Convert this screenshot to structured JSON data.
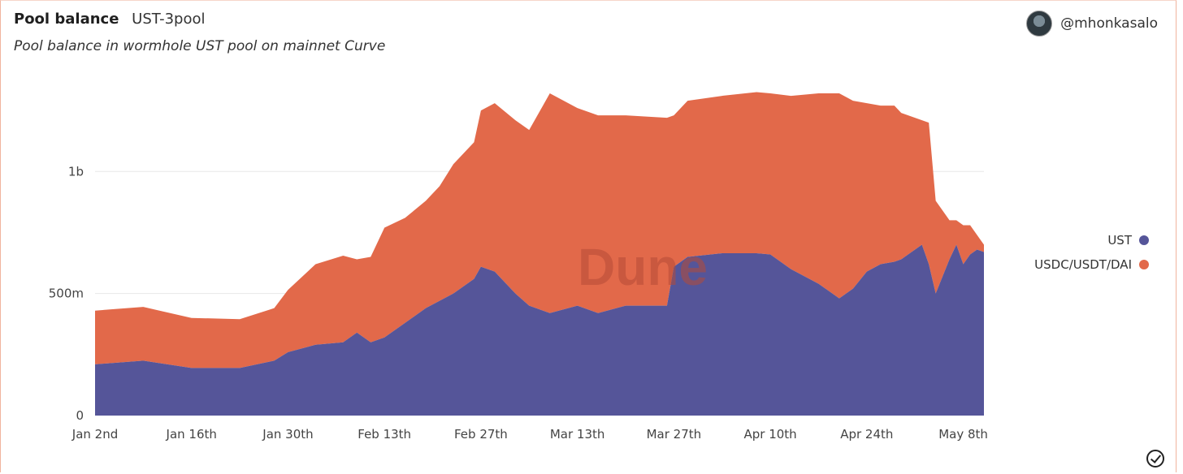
{
  "header": {
    "title": "Pool balance",
    "tag": "UST-3pool",
    "subtitle": "Pool balance in wormhole UST pool on mainnet Curve",
    "author": "@mhonkasalo"
  },
  "watermark": "Dune",
  "chart_data": {
    "type": "area",
    "stacked": true,
    "title": "Pool balance",
    "subtitle": "Pool balance in wormhole UST pool on mainnet Curve",
    "x_tick_labels": [
      "Jan 2nd",
      "Jan 16th",
      "Jan 30th",
      "Feb 13th",
      "Feb 27th",
      "Mar 13th",
      "Mar 27th",
      "Apr 10th",
      "Apr 24th",
      "May 8th"
    ],
    "y_tick_labels": [
      "0",
      "500m",
      "1b"
    ],
    "ylim": [
      0,
      1400000000
    ],
    "grid": "horizontal",
    "legend_position": "right",
    "x_day_offsets": [
      0,
      7,
      14,
      21,
      26,
      28,
      32,
      36,
      38,
      40,
      42,
      45,
      48,
      50,
      52,
      55,
      56,
      58,
      61,
      63,
      66,
      70,
      73,
      77,
      83,
      84,
      86,
      91,
      96,
      98,
      101,
      105,
      108,
      110,
      112,
      114,
      116,
      117,
      118,
      119,
      120,
      121,
      122,
      124,
      125,
      126,
      127,
      128,
      129
    ],
    "series": [
      {
        "name": "UST",
        "color": "#555599",
        "values": [
          210000000,
          225000000,
          195000000,
          195000000,
          225000000,
          260000000,
          290000000,
          300000000,
          340000000,
          300000000,
          320000000,
          380000000,
          440000000,
          470000000,
          500000000,
          560000000,
          610000000,
          590000000,
          500000000,
          450000000,
          420000000,
          450000000,
          420000000,
          450000000,
          450000000,
          610000000,
          650000000,
          665000000,
          665000000,
          660000000,
          600000000,
          540000000,
          480000000,
          520000000,
          590000000,
          620000000,
          630000000,
          640000000,
          660000000,
          680000000,
          700000000,
          620000000,
          500000000,
          640000000,
          700000000,
          620000000,
          660000000,
          680000000,
          670000000
        ]
      },
      {
        "name": "USDC/USDT/DAI",
        "color": "#e2694a",
        "values": [
          220000000,
          220000000,
          205000000,
          200000000,
          215000000,
          255000000,
          330000000,
          355000000,
          300000000,
          350000000,
          450000000,
          430000000,
          440000000,
          470000000,
          530000000,
          560000000,
          640000000,
          690000000,
          710000000,
          720000000,
          900000000,
          810000000,
          810000000,
          780000000,
          770000000,
          620000000,
          640000000,
          645000000,
          660000000,
          660000000,
          710000000,
          780000000,
          840000000,
          770000000,
          690000000,
          650000000,
          640000000,
          600000000,
          570000000,
          540000000,
          510000000,
          580000000,
          380000000,
          160000000,
          100000000,
          160000000,
          120000000,
          60000000,
          30000000
        ]
      }
    ]
  }
}
